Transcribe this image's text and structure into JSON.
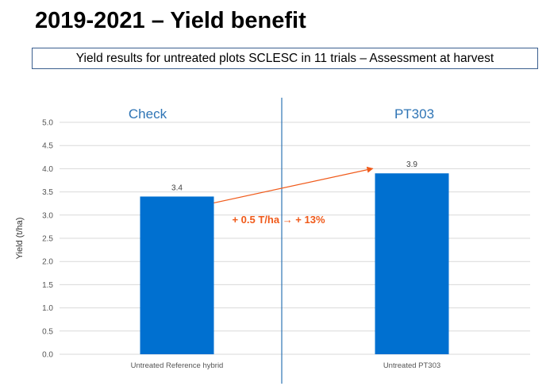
{
  "title": "2019-2021 – Yield benefit",
  "subtitle": "Yield results for untreated plots SCLESC in 11 trials –  Assessment at harvest",
  "colors": {
    "bar": "#0070d0",
    "group_label": "#2e74b5",
    "annotation": "#f05a1a",
    "divider": "#2e74b5",
    "grid": "#d9d9d9"
  },
  "chart_data": {
    "type": "bar",
    "categories": [
      "Untreated Reference hybrid",
      "Untreated PT303"
    ],
    "values": [
      3.4,
      3.9
    ],
    "value_labels": [
      "3.4",
      "3.9"
    ],
    "group_labels": [
      "Check",
      "PT303"
    ],
    "ylabel": "Yield (t/ha)",
    "ylim": [
      0,
      5
    ],
    "yticks": [
      "0.0",
      "0.5",
      "1.0",
      "1.5",
      "2.0",
      "2.5",
      "3.0",
      "3.5",
      "4.0",
      "4.5",
      "5.0"
    ],
    "grid": true,
    "annotation": "+ 0.5 T/ha → + 13%"
  }
}
